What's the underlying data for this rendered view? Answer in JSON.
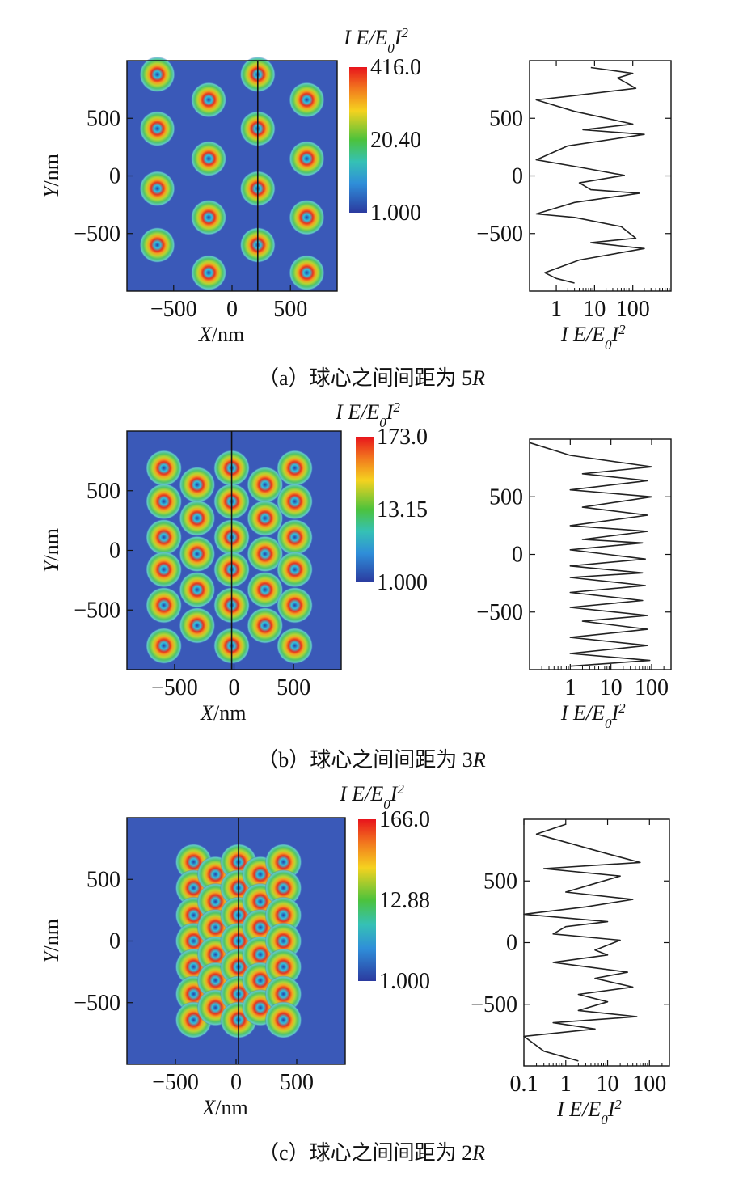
{
  "figure": {
    "colorbar_title": {
      "pre": "I E/E",
      "sub": "0",
      "post": "I",
      "sup": "2"
    },
    "profile_xlabel": {
      "pre": "I E/E",
      "sub": "0",
      "post": "I",
      "sup": "2"
    },
    "map_xlabel": {
      "var": "X",
      "unit": "/nm"
    },
    "map_ylabel": {
      "var": "Y",
      "unit": "/nm"
    }
  },
  "chart_data": [
    {
      "type": "heatmap",
      "panel": "a",
      "caption": {
        "pre": "（a）球心之间间距为 5",
        "var": "R"
      },
      "xlim": [
        -900,
        900
      ],
      "ylim": [
        -1000,
        1000
      ],
      "xticks": [
        -500,
        0,
        500
      ],
      "yticks": [
        500,
        0,
        -500
      ],
      "colorbar": {
        "labels": [
          "416.0",
          "20.40",
          "1.000"
        ],
        "values": [
          416.0,
          20.4,
          1.0
        ]
      },
      "cut_line_x": 220,
      "hotspots": [
        [
          -640,
          880
        ],
        [
          -200,
          660
        ],
        [
          220,
          880
        ],
        [
          640,
          660
        ],
        [
          -640,
          410
        ],
        [
          -200,
          150
        ],
        [
          220,
          410
        ],
        [
          640,
          150
        ],
        [
          -640,
          -110
        ],
        [
          -200,
          -360
        ],
        [
          220,
          -110
        ],
        [
          640,
          -360
        ],
        [
          -640,
          -600
        ],
        [
          -200,
          -840
        ],
        [
          220,
          -600
        ],
        [
          640,
          -840
        ]
      ],
      "profile": {
        "type": "line",
        "xscale": "log",
        "xlim": [
          0.2,
          1000
        ],
        "xticks": [
          1,
          10,
          100
        ],
        "ylim": [
          -1000,
          1000
        ],
        "yticks": [
          500,
          0,
          -500
        ],
        "series": [
          {
            "y": [
              940,
              890,
              850,
              760,
              690,
              660,
              560,
              450,
              400,
              360,
              260,
              140,
              70,
              5,
              -60,
              -120,
              -150,
              -230,
              -330,
              -360,
              -440,
              -540,
              -580,
              -630,
              -730,
              -840,
              -890,
              -930
            ],
            "x": [
              8,
              100,
              40,
              120,
              2,
              0.3,
              3,
              100,
              5,
              200,
              2,
              0.3,
              5,
              60,
              4,
              8,
              150,
              3,
              0.3,
              3,
              50,
              120,
              8,
              200,
              4,
              0.5,
              1,
              3
            ]
          }
        ]
      }
    },
    {
      "type": "heatmap",
      "panel": "b",
      "caption": {
        "pre": "（b）球心之间间距为 3",
        "var": "R"
      },
      "xlim": [
        -900,
        900
      ],
      "ylim": [
        -1000,
        1000
      ],
      "xticks": [
        -500,
        0,
        500
      ],
      "yticks": [
        500,
        0,
        -500
      ],
      "colorbar": {
        "labels": [
          "173.0",
          "13.15",
          "1.000"
        ],
        "values": [
          173.0,
          13.15,
          1.0
        ]
      },
      "cut_line_x": -20,
      "hotspots": [
        [
          -590,
          690
        ],
        [
          -590,
          410
        ],
        [
          -590,
          110
        ],
        [
          -590,
          -160
        ],
        [
          -590,
          -460
        ],
        [
          -590,
          -800
        ],
        [
          -310,
          550
        ],
        [
          -310,
          270
        ],
        [
          -310,
          -30
        ],
        [
          -310,
          -330
        ],
        [
          -310,
          -630
        ],
        [
          -20,
          690
        ],
        [
          -20,
          410
        ],
        [
          -20,
          110
        ],
        [
          -20,
          -160
        ],
        [
          -20,
          -460
        ],
        [
          -20,
          -800
        ],
        [
          260,
          550
        ],
        [
          260,
          270
        ],
        [
          260,
          -30
        ],
        [
          260,
          -330
        ],
        [
          260,
          -630
        ],
        [
          510,
          690
        ],
        [
          510,
          410
        ],
        [
          510,
          110
        ],
        [
          510,
          -160
        ],
        [
          510,
          -460
        ],
        [
          510,
          -800
        ]
      ],
      "profile": {
        "type": "line",
        "xscale": "log",
        "xlim": [
          0.1,
          300
        ],
        "xticks": [
          1,
          10,
          100
        ],
        "ylim": [
          -1000,
          1000
        ],
        "yticks": [
          500,
          0,
          -500
        ],
        "series": [
          {
            "y": [
              970,
              860,
              760,
              700,
              640,
              560,
              500,
              410,
              340,
              250,
              200,
              130,
              100,
              40,
              -40,
              -100,
              -160,
              -200,
              -270,
              -330,
              -400,
              -460,
              -530,
              -580,
              -650,
              -720,
              -790,
              -860,
              -920,
              -970
            ],
            "x": [
              0.1,
              1,
              100,
              2,
              80,
              1,
              100,
              2,
              80,
              1,
              80,
              2,
              60,
              1,
              70,
              1,
              60,
              1,
              70,
              1,
              60,
              1,
              80,
              2,
              80,
              1,
              80,
              1,
              90,
              1
            ]
          }
        ]
      }
    },
    {
      "type": "heatmap",
      "panel": "c",
      "caption": {
        "pre": "（c）球心之间间距为 2",
        "var": "R"
      },
      "xlim": [
        -900,
        900
      ],
      "ylim": [
        -1000,
        1000
      ],
      "xticks": [
        -500,
        0,
        500
      ],
      "yticks": [
        500,
        0,
        -500
      ],
      "colorbar": {
        "labels": [
          "166.0",
          "12.88",
          "1.000"
        ],
        "values": [
          166.0,
          12.88,
          1.0
        ]
      },
      "cut_line_x": 20,
      "hotspots": [
        [
          -350,
          640
        ],
        [
          -350,
          430
        ],
        [
          -350,
          210
        ],
        [
          -350,
          0
        ],
        [
          -350,
          -210
        ],
        [
          -350,
          -430
        ],
        [
          -350,
          -640
        ],
        [
          -170,
          540
        ],
        [
          -170,
          320
        ],
        [
          -170,
          110
        ],
        [
          -170,
          -110
        ],
        [
          -170,
          -320
        ],
        [
          -170,
          -540
        ],
        [
          20,
          640
        ],
        [
          20,
          430
        ],
        [
          20,
          210
        ],
        [
          20,
          0
        ],
        [
          20,
          -210
        ],
        [
          20,
          -430
        ],
        [
          20,
          -640
        ],
        [
          200,
          540
        ],
        [
          200,
          320
        ],
        [
          200,
          110
        ],
        [
          200,
          -110
        ],
        [
          200,
          -320
        ],
        [
          200,
          -540
        ],
        [
          390,
          640
        ],
        [
          390,
          430
        ],
        [
          390,
          210
        ],
        [
          390,
          0
        ],
        [
          390,
          -210
        ],
        [
          390,
          -430
        ],
        [
          390,
          -640
        ]
      ],
      "profile": {
        "type": "line",
        "xscale": "log",
        "xlim": [
          0.1,
          300
        ],
        "xticks": [
          0.1,
          1,
          10,
          100
        ],
        "ylim": [
          -1000,
          1000
        ],
        "yticks": [
          500,
          0,
          -500
        ],
        "series": [
          {
            "y": [
              960,
              880,
              720,
              650,
              600,
              540,
              480,
              410,
              350,
              290,
              230,
              170,
              130,
              70,
              20,
              -60,
              -100,
              -160,
              -240,
              -290,
              -360,
              -420,
              -480,
              -550,
              -600,
              -650,
              -700,
              -760,
              -880,
              -960
            ],
            "x": [
              1,
              0.2,
              10,
              60,
              0.3,
              20,
              5,
              1,
              40,
              3,
              0.1,
              10,
              1,
              0.5,
              20,
              5,
              10,
              0.5,
              30,
              5,
              40,
              2,
              10,
              2,
              50,
              0.5,
              5,
              0.1,
              0.3,
              2
            ]
          }
        ]
      }
    }
  ]
}
